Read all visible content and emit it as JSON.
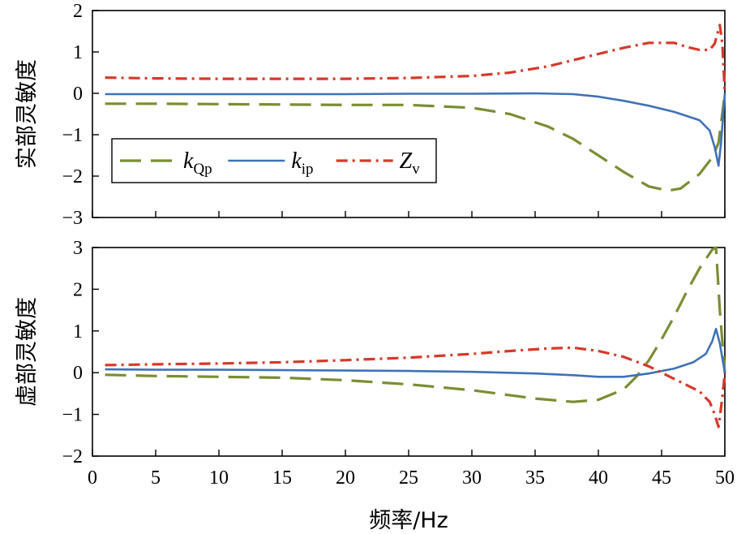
{
  "chart_data": [
    {
      "type": "line",
      "ylabel": "实部灵敏度",
      "xlabel": "",
      "xlim": [
        0,
        50
      ],
      "ylim": [
        -3,
        2
      ],
      "yticks": [
        2,
        1,
        0,
        -1,
        -2,
        -3
      ],
      "legend": {
        "position": "lower-left",
        "entries": [
          {
            "symbol": "k",
            "sub": "Qp",
            "color": "#7A8E33",
            "dash": "dashed"
          },
          {
            "symbol": "k",
            "sub": "ip",
            "color": "#3F72B8",
            "dash": "solid"
          },
          {
            "symbol": "Z",
            "sub": "v",
            "color": "#D53A2B",
            "dash": "dashdot"
          }
        ]
      },
      "series": [
        {
          "key": "kQp",
          "color": "#7A8E33",
          "dash": "dashed",
          "x": [
            1,
            5,
            10,
            15,
            20,
            25,
            30,
            33,
            36,
            38,
            40,
            42,
            44,
            45.5,
            46.5,
            48,
            49,
            49.5,
            50
          ],
          "y": [
            -0.25,
            -0.25,
            -0.26,
            -0.27,
            -0.28,
            -0.28,
            -0.35,
            -0.5,
            -0.8,
            -1.1,
            -1.5,
            -1.9,
            -2.25,
            -2.35,
            -2.3,
            -1.95,
            -1.55,
            -1.2,
            0.0
          ]
        },
        {
          "key": "kip",
          "color": "#3F72B8",
          "dash": "solid",
          "x": [
            1,
            5,
            10,
            15,
            20,
            25,
            30,
            35,
            38,
            40,
            42,
            44,
            46,
            48,
            48.8,
            49.2,
            49.5,
            49.7,
            50
          ],
          "y": [
            -0.02,
            -0.02,
            -0.02,
            -0.02,
            -0.02,
            -0.01,
            -0.01,
            0.0,
            -0.02,
            -0.08,
            -0.18,
            -0.3,
            -0.45,
            -0.65,
            -0.9,
            -1.3,
            -1.75,
            -1.2,
            0.0
          ]
        },
        {
          "key": "Zv",
          "color": "#D53A2B",
          "dash": "dashdot",
          "x": [
            1,
            5,
            10,
            15,
            20,
            25,
            30,
            33,
            36,
            38,
            40,
            42,
            44,
            46,
            47,
            48,
            48.8,
            49.2,
            49.6,
            49.8,
            50
          ],
          "y": [
            0.38,
            0.36,
            0.35,
            0.35,
            0.35,
            0.37,
            0.42,
            0.5,
            0.65,
            0.8,
            0.95,
            1.1,
            1.22,
            1.22,
            1.12,
            1.05,
            1.05,
            1.2,
            1.65,
            1.2,
            0.0
          ]
        }
      ]
    },
    {
      "type": "line",
      "ylabel": "虚部灵敏度",
      "xlabel": "频率/Hz",
      "xlim": [
        0,
        50
      ],
      "ylim": [
        -2,
        3
      ],
      "xticks": [
        0,
        5,
        10,
        15,
        20,
        25,
        30,
        35,
        40,
        45,
        50
      ],
      "yticks": [
        3,
        2,
        1,
        0,
        -1,
        -2
      ],
      "series": [
        {
          "key": "kQp",
          "color": "#7A8E33",
          "dash": "dashed",
          "x": [
            1,
            5,
            10,
            15,
            20,
            25,
            30,
            35,
            38,
            40,
            42,
            43,
            44,
            45,
            46,
            47,
            48,
            49,
            49.3,
            49.6,
            50
          ],
          "y": [
            -0.05,
            -0.08,
            -0.1,
            -0.12,
            -0.18,
            -0.28,
            -0.42,
            -0.62,
            -0.7,
            -0.65,
            -0.4,
            -0.1,
            0.3,
            0.8,
            1.35,
            1.95,
            2.5,
            2.95,
            3.0,
            1.5,
            0.0
          ]
        },
        {
          "key": "kip",
          "color": "#3F72B8",
          "dash": "solid",
          "x": [
            1,
            5,
            10,
            15,
            20,
            25,
            30,
            35,
            38,
            40,
            42,
            44,
            46,
            47.5,
            48.5,
            49,
            49.3,
            49.6,
            50
          ],
          "y": [
            0.08,
            0.07,
            0.07,
            0.06,
            0.05,
            0.04,
            0.02,
            -0.02,
            -0.06,
            -0.1,
            -0.1,
            -0.02,
            0.1,
            0.25,
            0.45,
            0.75,
            1.05,
            0.7,
            0.0
          ]
        },
        {
          "key": "Zv",
          "color": "#D53A2B",
          "dash": "dashdot",
          "x": [
            1,
            5,
            10,
            15,
            20,
            25,
            30,
            33,
            36,
            38,
            40,
            42,
            44,
            45,
            46,
            47,
            48,
            48.8,
            49.2,
            49.5,
            49.8,
            50
          ],
          "y": [
            0.18,
            0.2,
            0.22,
            0.25,
            0.3,
            0.36,
            0.45,
            0.52,
            0.58,
            0.6,
            0.52,
            0.38,
            0.15,
            0.0,
            -0.15,
            -0.3,
            -0.45,
            -0.7,
            -1.0,
            -1.3,
            -0.6,
            0.0
          ]
        }
      ]
    }
  ]
}
